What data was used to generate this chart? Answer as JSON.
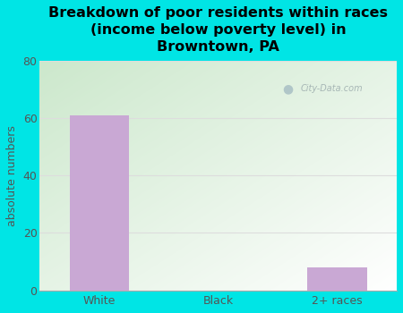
{
  "categories": [
    "White",
    "Black",
    "2+ races"
  ],
  "values": [
    61,
    0,
    8
  ],
  "bar_color": "#c9a8d4",
  "title": "Breakdown of poor residents within races\n(income below poverty level) in\nBrowntown, PA",
  "ylabel": "absolute numbers",
  "ylim": [
    0,
    80
  ],
  "yticks": [
    0,
    20,
    40,
    60,
    80
  ],
  "outer_bg": "#00e5e5",
  "plot_bg_topleft": "#cce8cc",
  "plot_bg_bottomright": "#ffffff",
  "watermark_text": "City-Data.com",
  "title_fontsize": 11.5,
  "ylabel_fontsize": 9,
  "tick_fontsize": 9,
  "grid_color": "#dddddd",
  "bar_width": 0.5
}
